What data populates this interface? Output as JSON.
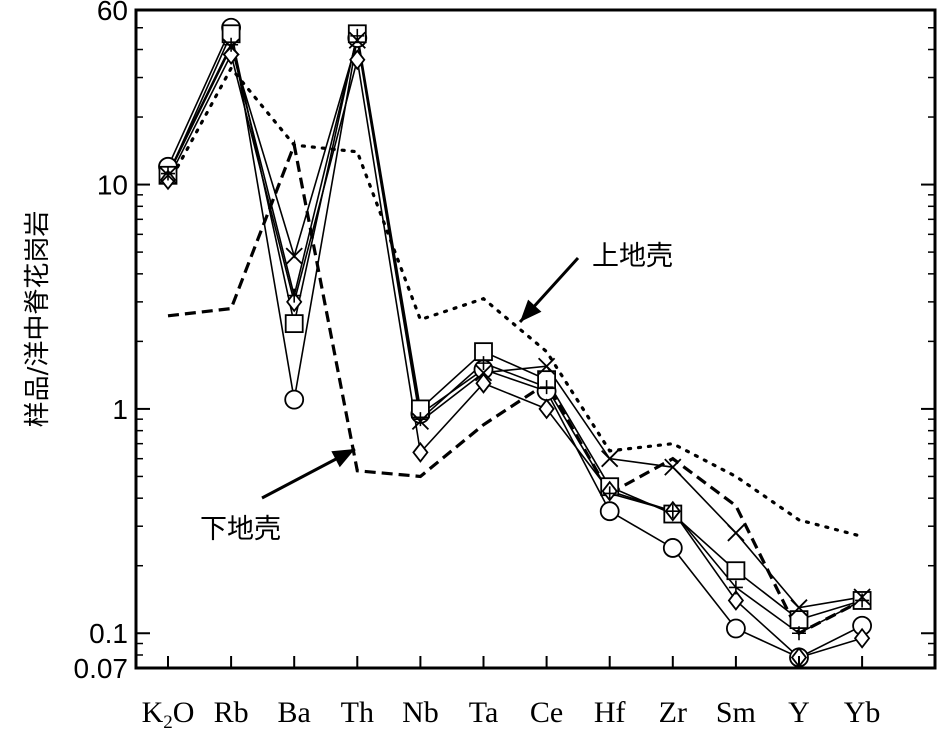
{
  "chart_data": {
    "type": "line",
    "ylabel": "样品/洋中脊花岗岩",
    "xlabel": "",
    "y_scale": "log",
    "ylim": [
      0.07,
      60
    ],
    "y_ticks": [
      "60",
      "10",
      "1",
      "0.1",
      "0.07"
    ],
    "y_tick_values": [
      60,
      10,
      1,
      0.1,
      0.07
    ],
    "categories": [
      "K2O",
      "Rb",
      "Ba",
      "Th",
      "Nb",
      "Ta",
      "Ce",
      "Hf",
      "Zr",
      "Sm",
      "Y",
      "Yb"
    ],
    "category_labels": [
      {
        "main": "K",
        "sub": "2",
        "tail": "O"
      },
      {
        "main": "Rb"
      },
      {
        "main": "Ba"
      },
      {
        "main": "Th"
      },
      {
        "main": "Nb"
      },
      {
        "main": "Ta"
      },
      {
        "main": "Ce"
      },
      {
        "main": "Hf"
      },
      {
        "main": "Zr"
      },
      {
        "main": "Sm"
      },
      {
        "main": "Y"
      },
      {
        "main": "Yb"
      }
    ],
    "series": [
      {
        "marker": "circle",
        "values": [
          12,
          50,
          1.1,
          45,
          0.95,
          1.5,
          1.2,
          0.35,
          0.24,
          0.105,
          0.078,
          0.108
        ]
      },
      {
        "marker": "square",
        "values": [
          11,
          47,
          2.4,
          47,
          1.0,
          1.8,
          1.35,
          0.45,
          0.34,
          0.19,
          0.115,
          0.14
        ]
      },
      {
        "marker": "diamond",
        "values": [
          10.5,
          38,
          3.0,
          36,
          0.64,
          1.3,
          1.0,
          0.43,
          0.35,
          0.14,
          0.078,
          0.095
        ]
      },
      {
        "marker": "x",
        "values": [
          11,
          41,
          4.8,
          44,
          0.88,
          1.45,
          1.55,
          0.6,
          0.55,
          0.28,
          0.13,
          0.145
        ]
      },
      {
        "marker": "plus",
        "values": [
          11.2,
          42,
          3.2,
          46,
          0.9,
          1.6,
          1.25,
          0.42,
          0.35,
          0.16,
          0.1,
          0.14
        ]
      }
    ],
    "reference_lines": [
      {
        "label": "上地壳",
        "style": "dotted",
        "values": [
          10,
          33,
          15,
          14,
          2.5,
          3.1,
          1.8,
          0.65,
          0.7,
          0.5,
          0.32,
          0.27
        ]
      },
      {
        "label": "下地壳",
        "style": "dashed",
        "values": [
          2.6,
          2.8,
          15,
          0.53,
          0.5,
          0.85,
          1.3,
          0.42,
          0.6,
          0.37,
          0.1,
          0.14
        ]
      }
    ],
    "annotations": [
      {
        "text": "上地壳",
        "target": "upper-crust"
      },
      {
        "text": "下地壳",
        "target": "lower-crust"
      }
    ],
    "grid": false,
    "legend": "none"
  }
}
